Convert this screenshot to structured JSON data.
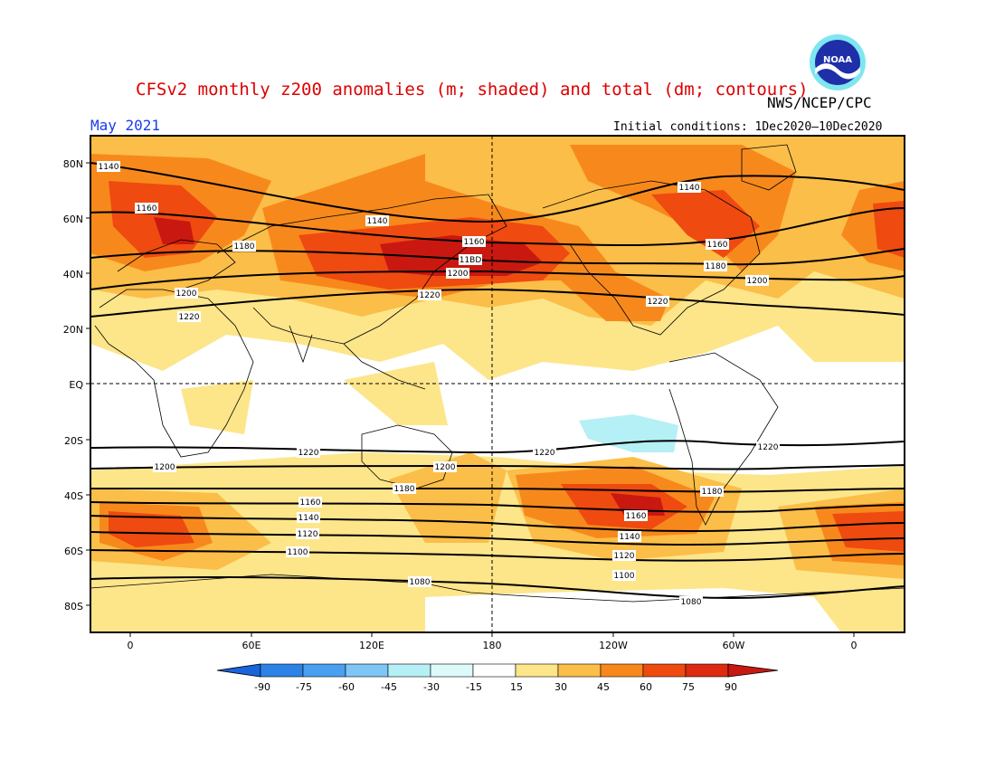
{
  "title": "CFSv2 monthly z200 anomalies (m; shaded) and total (dm; contours)",
  "agency": "NWS/NCEP/CPC",
  "month": "May 2021",
  "initial_conditions": "Initial conditions: 1Dec2020–10Dec2020",
  "logo_text": "NOAA",
  "colors": {
    "shade_15_30": "#fde58a",
    "shade_30_45": "#fbbe48",
    "shade_45_60": "#f7891c",
    "shade_60_75": "#ef4a10",
    "shade_75_90": "#c91810",
    "shade_neg_15_30": "#b4f0f5",
    "coast": "#000000",
    "title": "#dd0000",
    "month": "#1a3cf0"
  },
  "axes": {
    "lat_labels": [
      "80N",
      "60N",
      "40N",
      "20N",
      "EQ",
      "20S",
      "40S",
      "60S",
      "80S"
    ],
    "lon_labels": [
      "0",
      "60E",
      "120E",
      "180",
      "120W",
      "60W",
      "0"
    ]
  },
  "colorbar": {
    "labels": [
      "-90",
      "-75",
      "-60",
      "-45",
      "-30",
      "-15",
      "15",
      "30",
      "45",
      "60",
      "75",
      "90"
    ],
    "colors": [
      "#1a64dc",
      "#2d82e6",
      "#4b9ff0",
      "#7ec6f5",
      "#b4f0f5",
      "#ffffff",
      "#fde58a",
      "#fbbe48",
      "#f7891c",
      "#ef4a10",
      "#c91810"
    ]
  },
  "contour_labels": [
    "1140",
    "1160",
    "1180",
    "1200",
    "1220",
    "1140",
    "1160",
    "11BD",
    "1200",
    "1220",
    "1140",
    "1160",
    "1180",
    "1200",
    "1220",
    "1220",
    "1200",
    "1180",
    "1160",
    "1140",
    "1120",
    "1100",
    "1080",
    "1220",
    "1220",
    "1200",
    "1180",
    "1160",
    "1140",
    "1120",
    "1100",
    "1080"
  ]
}
